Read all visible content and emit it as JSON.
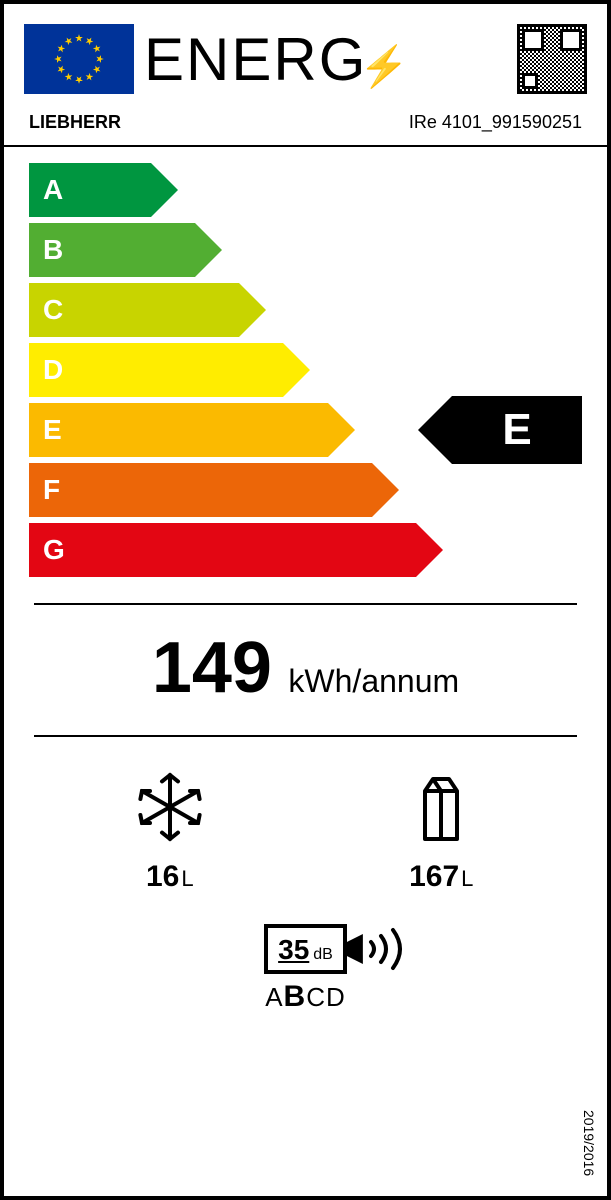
{
  "header": {
    "title": "ENERG",
    "bolt_glyph": "⚡"
  },
  "product": {
    "brand": "LIEBHERR",
    "model": "IRe 4101_991590251"
  },
  "scale": {
    "classes": [
      {
        "label": "A",
        "color": "#009640",
        "width_pct": 22
      },
      {
        "label": "B",
        "color": "#52ae32",
        "width_pct": 30
      },
      {
        "label": "C",
        "color": "#c8d400",
        "width_pct": 38
      },
      {
        "label": "D",
        "color": "#ffed00",
        "width_pct": 46
      },
      {
        "label": "E",
        "color": "#fbba00",
        "width_pct": 54
      },
      {
        "label": "F",
        "color": "#ec6608",
        "width_pct": 62
      },
      {
        "label": "G",
        "color": "#e30613",
        "width_pct": 70
      }
    ],
    "rating": "E",
    "rating_index": 4
  },
  "consumption": {
    "value": "149",
    "unit": "kWh/annum"
  },
  "compartments": {
    "freezer": {
      "value": "16",
      "unit": "L"
    },
    "fridge": {
      "value": "167",
      "unit": "L"
    }
  },
  "noise": {
    "value": "35",
    "unit": "dB",
    "classes": [
      "A",
      "B",
      "C",
      "D"
    ],
    "selected": "B"
  },
  "regulation": "2019/2016"
}
